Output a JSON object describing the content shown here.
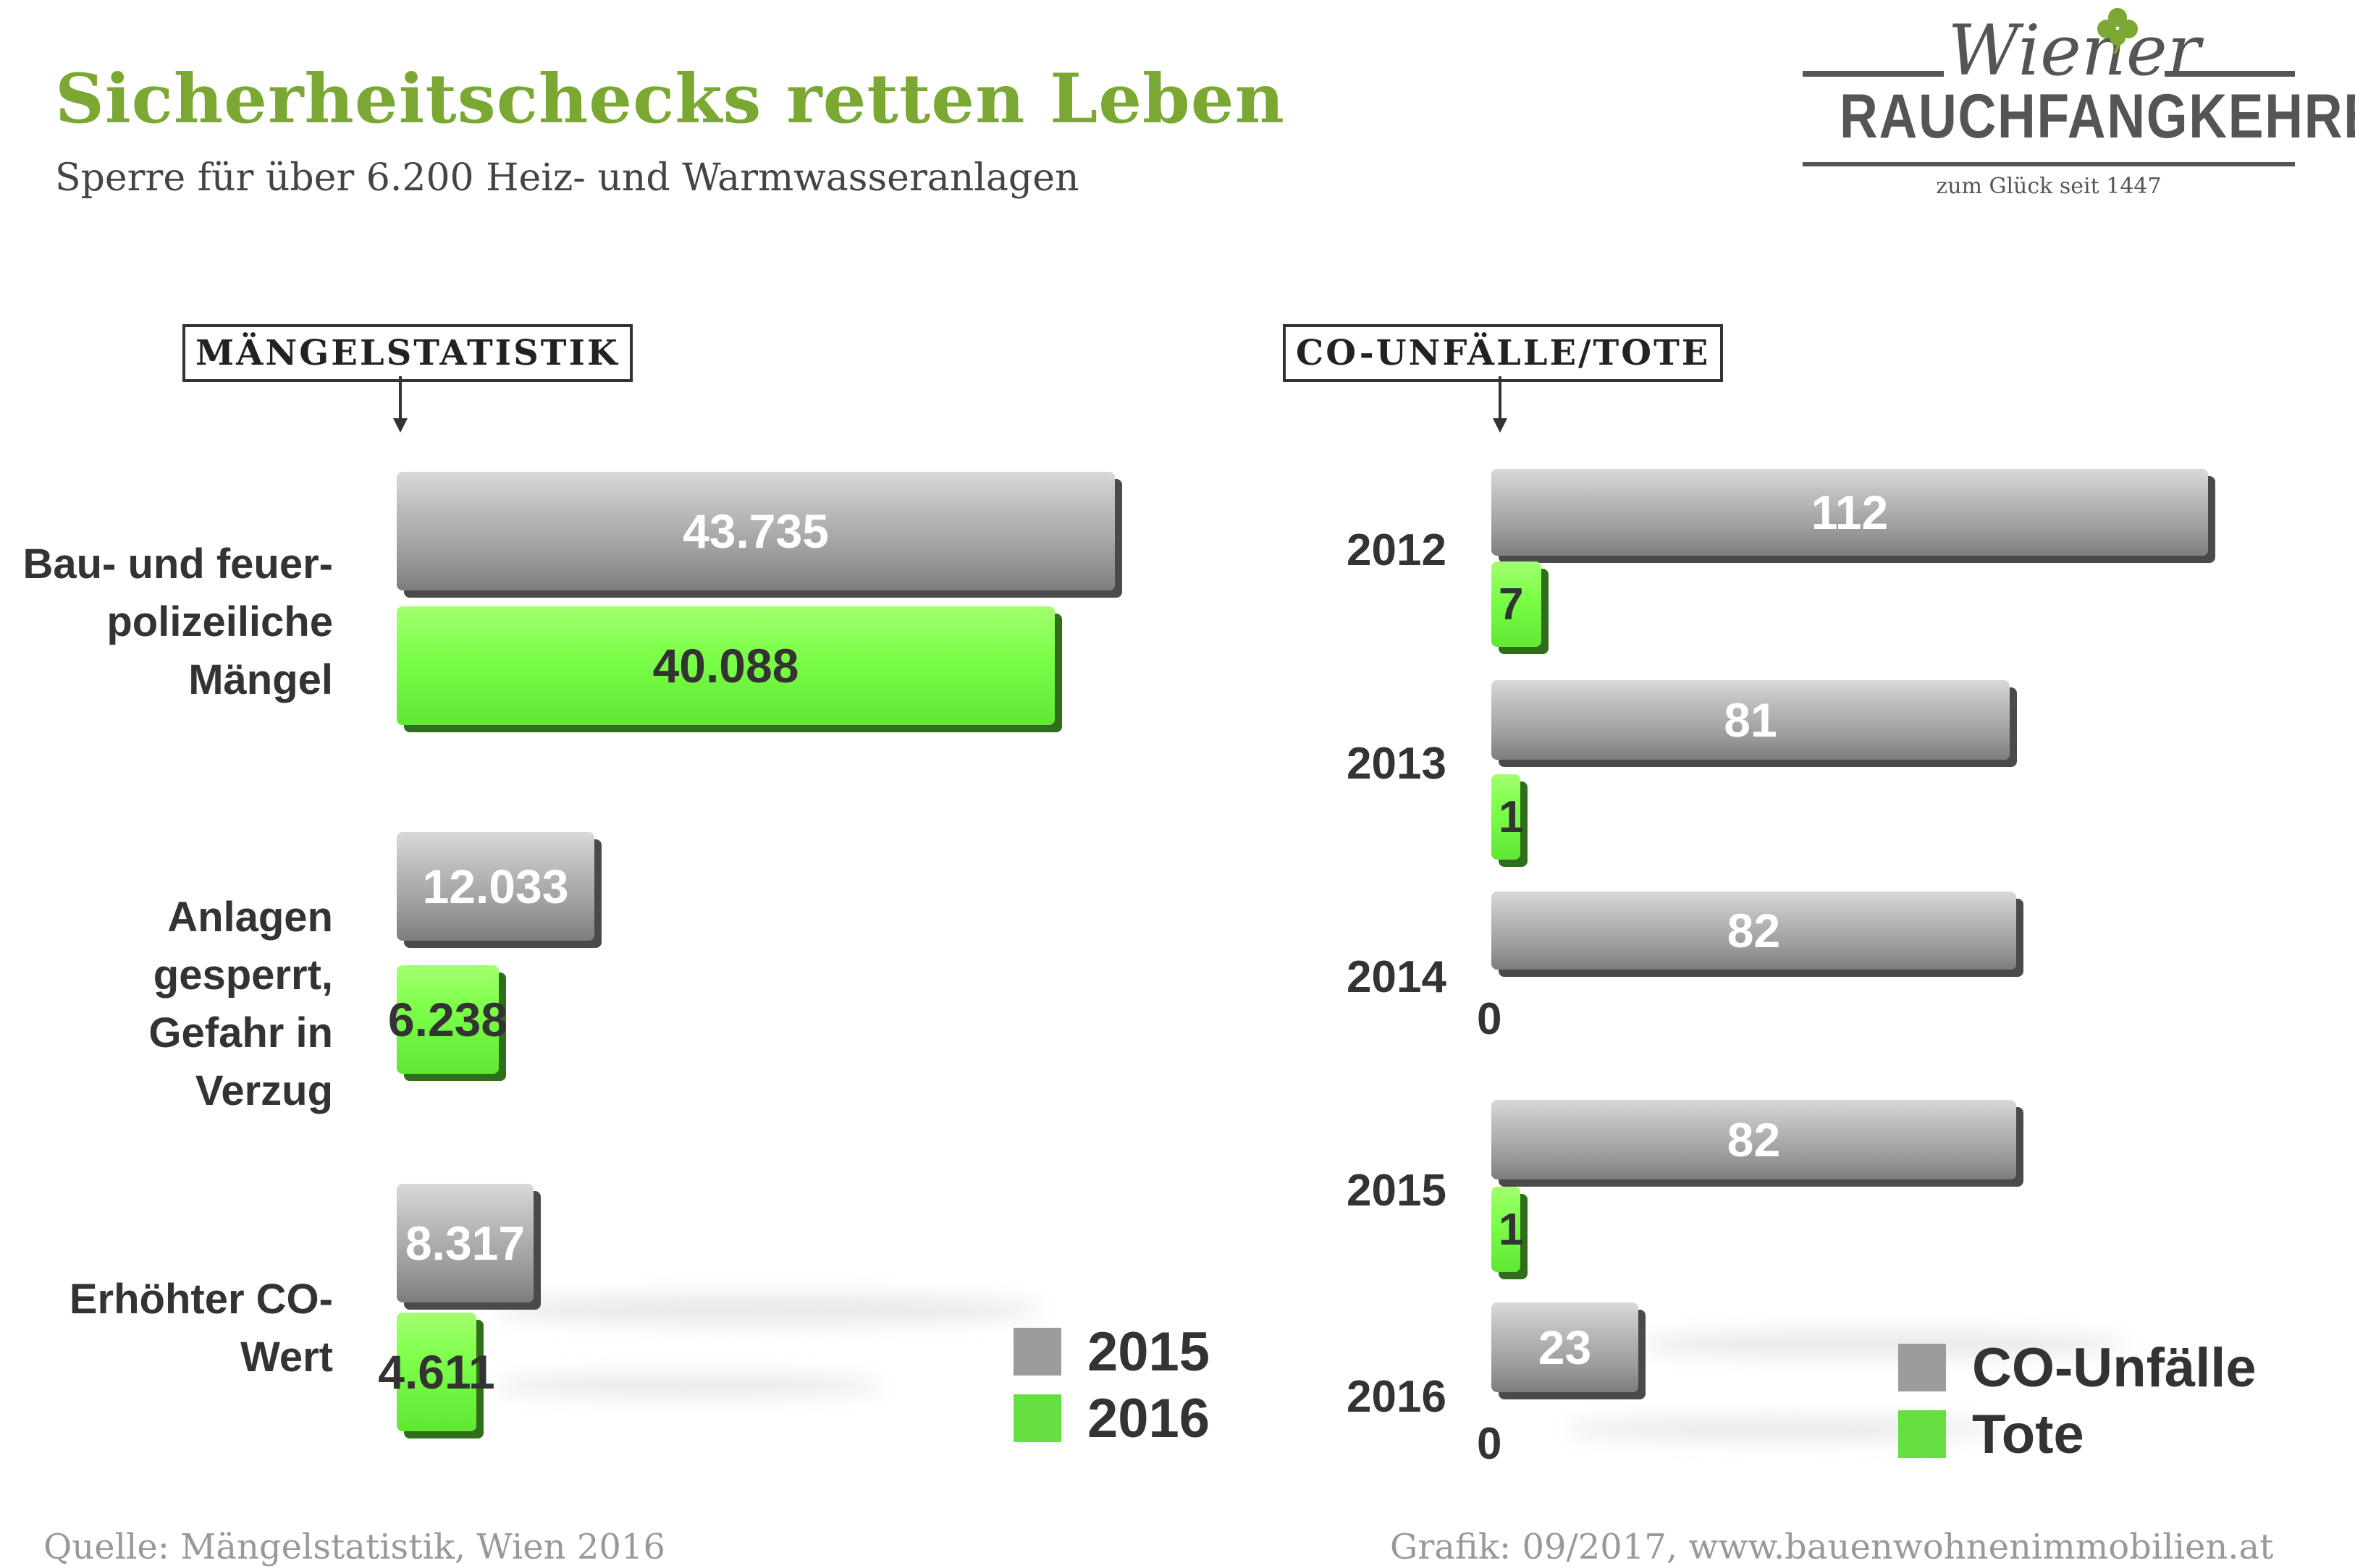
{
  "header": {
    "title": "Sicherheitschecks retten Leben",
    "subtitle": "Sperre für über 6.200 Heiz- und Warmwasseranlagen"
  },
  "logo": {
    "script": "Wiener",
    "name": "RAUCHFANGKEHRER",
    "tagline": "zum Glück seit 1447"
  },
  "colors": {
    "title_green": "#7aa832",
    "series_gray": "#9c9c9c",
    "series_green": "#66e040"
  },
  "chart_data": [
    {
      "type": "bar",
      "orientation": "horizontal",
      "title": "MÄNGELSTATISTIK",
      "categories": [
        "Bau- und feuer-polizeiliche Mängel",
        "Anlagen gesperrt, Gefahr in Verzug",
        "Erhöhter CO-Wert"
      ],
      "category_lines": [
        [
          "Bau- und feuer-",
          "polizeiliche Mängel"
        ],
        [
          "Anlagen gesperrt,",
          "Gefahr in Verzug"
        ],
        [
          "Erhöhter CO-Wert"
        ]
      ],
      "series": [
        {
          "name": "2015",
          "values": [
            43735,
            12033,
            8317
          ],
          "labels": [
            "43.735",
            "12.033",
            "8.317"
          ]
        },
        {
          "name": "2016",
          "values": [
            40088,
            6238,
            4611
          ],
          "labels": [
            "40.088",
            "6.238",
            "4.611"
          ]
        }
      ],
      "legend": "bottom-right"
    },
    {
      "type": "bar",
      "orientation": "horizontal",
      "title": "CO-UNFÄLLE/TOTE",
      "categories": [
        "2012",
        "2013",
        "2014",
        "2015",
        "2016"
      ],
      "series": [
        {
          "name": "CO-Unfälle",
          "values": [
            112,
            81,
            82,
            82,
            23
          ],
          "labels": [
            "112",
            "81",
            "82",
            "82",
            "23"
          ]
        },
        {
          "name": "Tote",
          "values": [
            7,
            1,
            0,
            1,
            0
          ],
          "labels": [
            "7",
            "1",
            "0",
            "1",
            "0"
          ]
        }
      ],
      "legend": "bottom-right"
    }
  ],
  "footer": {
    "source": "Quelle: Mängelstatistik, Wien 2016",
    "credit": "Grafik: 09/2017, www.bauenwohnenimmobilien.at"
  }
}
